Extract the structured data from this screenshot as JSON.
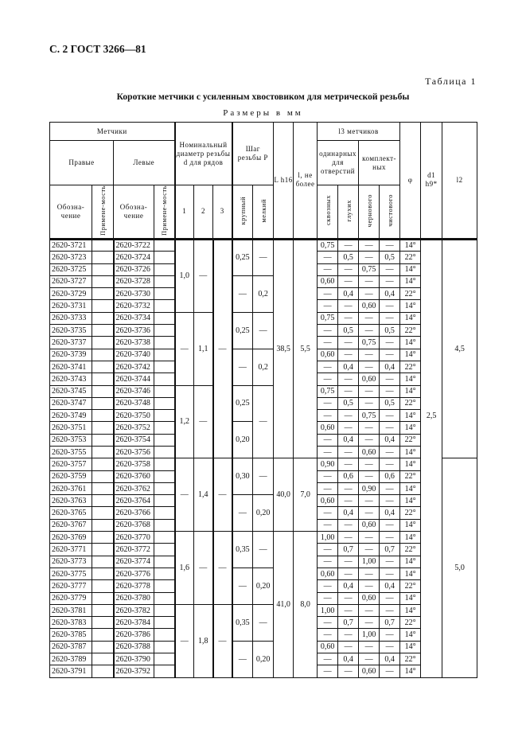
{
  "page_header": "С. 2 ГОСТ 3266—81",
  "table_number": "Таблица 1",
  "table_title": "Короткие метчики с усиленным хвостовиком для метрической резьбы",
  "units": "Размеры в мм",
  "headers": {
    "taps": "Метчики",
    "right": "Правые",
    "left": "Левые",
    "designation": "Обозна-чение",
    "applicability": "Примене-мость",
    "nominal_diameter": "Номинальный диаметр резьбы d для рядов",
    "rows": [
      "1",
      "2",
      "3"
    ],
    "pitch": "Шаг резьбы P",
    "coarse": "крупный",
    "fine": "мелкий",
    "L": "L h16",
    "l": "l, не более",
    "l3": "l3 метчиков",
    "single": "одинарных для отверстий",
    "set": "комплект-ных",
    "through": "сквозных",
    "blind": "глухих",
    "rough": "чернового",
    "finish": "чистового",
    "phi": "φ",
    "d1": "d1 h9*",
    "l2": "l2"
  },
  "rows": [
    [
      "2620-3721",
      "2620-3722",
      "0,75",
      "—",
      "—",
      "—",
      "14°"
    ],
    [
      "2620-3723",
      "2620-3724",
      "—",
      "0,5",
      "—",
      "0,5",
      "22°"
    ],
    [
      "2620-3725",
      "2620-3726",
      "—",
      "—",
      "0,75",
      "—",
      "14°"
    ],
    [
      "2620-3727",
      "2620-3728",
      "0,60",
      "—",
      "—",
      "—",
      "14°"
    ],
    [
      "2620-3729",
      "2620-3730",
      "—",
      "0,4",
      "—",
      "0,4",
      "22°"
    ],
    [
      "2620-3731",
      "2620-3732",
      "—",
      "—",
      "0,60",
      "—",
      "14°"
    ],
    [
      "2620-3733",
      "2620-3734",
      "0,75",
      "—",
      "—",
      "—",
      "14°"
    ],
    [
      "2620-3735",
      "2620-3736",
      "—",
      "0,5",
      "—",
      "0,5",
      "22°"
    ],
    [
      "2620-3737",
      "2620-3738",
      "—",
      "—",
      "0,75",
      "—",
      "14°"
    ],
    [
      "2620-3739",
      "2620-3740",
      "0,60",
      "—",
      "—",
      "—",
      "14°"
    ],
    [
      "2620-3741",
      "2620-3742",
      "—",
      "0,4",
      "—",
      "0,4",
      "22°"
    ],
    [
      "2620-3743",
      "2620-3744",
      "—",
      "—",
      "0,60",
      "—",
      "14°"
    ],
    [
      "2620-3745",
      "2620-3746",
      "0,75",
      "—",
      "—",
      "—",
      "14°"
    ],
    [
      "2620-3747",
      "2620-3748",
      "—",
      "0,5",
      "—",
      "0,5",
      "22°"
    ],
    [
      "2620-3749",
      "2620-3750",
      "—",
      "—",
      "0,75",
      "—",
      "14°"
    ],
    [
      "2620-3751",
      "2620-3752",
      "0,60",
      "—",
      "—",
      "—",
      "14°"
    ],
    [
      "2620-3753",
      "2620-3754",
      "—",
      "0,4",
      "—",
      "0,4",
      "22°"
    ],
    [
      "2620-3755",
      "2620-3756",
      "—",
      "—",
      "0,60",
      "—",
      "14°"
    ],
    [
      "2620-3757",
      "2620-3758",
      "0,90",
      "—",
      "—",
      "—",
      "14°"
    ],
    [
      "2620-3759",
      "2620-3760",
      "—",
      "0,6",
      "—",
      "0,6",
      "22°"
    ],
    [
      "2620-3761",
      "2620-3762",
      "—",
      "—",
      "0,90",
      "—",
      "14°"
    ],
    [
      "2620-3763",
      "2620-3764",
      "0,60",
      "—",
      "—",
      "—",
      "14°"
    ],
    [
      "2620-3765",
      "2620-3766",
      "—",
      "0,4",
      "—",
      "0,4",
      "22°"
    ],
    [
      "2620-3767",
      "2620-3768",
      "—",
      "—",
      "0,60",
      "—",
      "14°"
    ],
    [
      "2620-3769",
      "2620-3770",
      "1,00",
      "—",
      "—",
      "—",
      "14°"
    ],
    [
      "2620-3771",
      "2620-3772",
      "—",
      "0,7",
      "—",
      "0,7",
      "22°"
    ],
    [
      "2620-3773",
      "2620-3774",
      "—",
      "—",
      "1,00",
      "—",
      "14°"
    ],
    [
      "2620-3775",
      "2620-3776",
      "0,60",
      "—",
      "—",
      "—",
      "14°"
    ],
    [
      "2620-3777",
      "2620-3778",
      "—",
      "0,4",
      "—",
      "0,4",
      "22°"
    ],
    [
      "2620-3779",
      "2620-3780",
      "—",
      "—",
      "0,60",
      "—",
      "14°"
    ],
    [
      "2620-3781",
      "2620-3782",
      "1,00",
      "—",
      "—",
      "—",
      "14°"
    ],
    [
      "2620-3783",
      "2620-3784",
      "—",
      "0,7",
      "—",
      "0,7",
      "22°"
    ],
    [
      "2620-3785",
      "2620-3786",
      "—",
      "—",
      "1,00",
      "—",
      "14°"
    ],
    [
      "2620-3787",
      "2620-3788",
      "0,60",
      "—",
      "—",
      "—",
      "14°"
    ],
    [
      "2620-3789",
      "2620-3790",
      "—",
      "0,4",
      "—",
      "0,4",
      "22°"
    ],
    [
      "2620-3791",
      "2620-3792",
      "—",
      "—",
      "0,60",
      "—",
      "14°"
    ]
  ],
  "merged": {
    "d_row1": [
      [
        "1,0",
        6
      ],
      [
        "—",
        6
      ],
      [
        "1,2",
        6
      ],
      [
        "—",
        6
      ],
      [
        "1,6",
        6
      ],
      [
        "—",
        6
      ]
    ],
    "d_row2": [
      [
        "—",
        6
      ],
      [
        "1,1",
        6
      ],
      [
        "—",
        6
      ],
      [
        "1,4",
        6
      ],
      [
        "—",
        6
      ],
      [
        "1,8",
        6
      ]
    ],
    "d_row3": [
      [
        "—",
        18
      ],
      [
        "—",
        6
      ],
      [
        "—",
        6
      ],
      [
        "—",
        6
      ]
    ],
    "coarse": [
      [
        "0,25",
        3
      ],
      [
        "—",
        3
      ],
      [
        "0,25",
        3
      ],
      [
        "—",
        3
      ],
      [
        "0,25",
        3
      ],
      [
        "0,20",
        3
      ],
      [
        "0,30",
        3
      ],
      [
        "—",
        3
      ],
      [
        "0,35",
        3
      ],
      [
        "—",
        3
      ],
      [
        "0,35",
        3
      ],
      [
        "—",
        3
      ]
    ],
    "fine": [
      [
        "—",
        3
      ],
      [
        "0,2",
        3
      ],
      [
        "—",
        3
      ],
      [
        "0,2",
        3
      ],
      [
        "—",
        6
      ],
      [
        "—",
        3
      ],
      [
        "0,20",
        3
      ],
      [
        "—",
        3
      ],
      [
        "0,20",
        3
      ],
      [
        "—",
        3
      ],
      [
        "0,20",
        3
      ]
    ],
    "L": [
      [
        "38,5",
        18
      ],
      [
        "40,0",
        6
      ],
      [
        "41,0",
        12
      ]
    ],
    "l": [
      [
        "5,5",
        18
      ],
      [
        "7,0",
        6
      ],
      [
        "8,0",
        12
      ]
    ],
    "d1": [
      [
        "2,5",
        36
      ]
    ],
    "l2": [
      [
        "4,5",
        18
      ],
      [
        "5,0",
        18
      ]
    ]
  }
}
